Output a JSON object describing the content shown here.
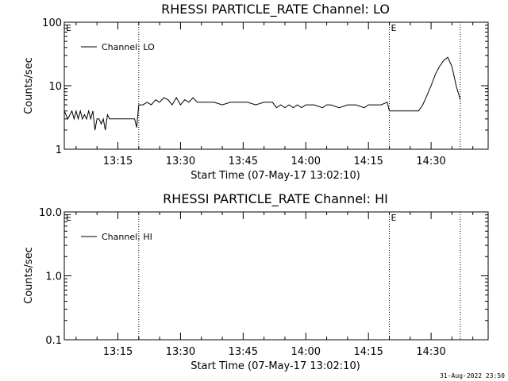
{
  "footer_date": "31-Aug-2022 23:50",
  "chart_data": [
    {
      "type": "line",
      "title": "RHESSI PARTICLE_RATE Channel: LO",
      "xlabel": "Start Time (07-May-17 13:02:10)",
      "ylabel": "Counts/sec",
      "yscale": "log",
      "ylim": [
        1,
        100
      ],
      "yticks": [
        1,
        10,
        100
      ],
      "ytick_labels": [
        "1",
        "10",
        "100"
      ],
      "xlim": [
        "13:02:10",
        "14:43:40"
      ],
      "xticks": [
        "13:15",
        "13:30",
        "13:45",
        "14:00",
        "14:15",
        "14:30"
      ],
      "markers": [
        {
          "time": "13:20:00",
          "label": ""
        },
        {
          "time": "14:20:00",
          "label": "E"
        },
        {
          "time": "14:37:00",
          "label": ""
        }
      ],
      "corner_label": "E",
      "legend_position": "top-left",
      "series": [
        {
          "name": "Channel: LO",
          "x": [
            "13:02:10",
            "13:03:00",
            "13:04:00",
            "13:04:30",
            "13:05:00",
            "13:05:30",
            "13:06:00",
            "13:06:30",
            "13:07:00",
            "13:07:30",
            "13:08:00",
            "13:08:30",
            "13:09:00",
            "13:09:30",
            "13:10:00",
            "13:10:30",
            "13:11:00",
            "13:11:30",
            "13:12:00",
            "13:12:30",
            "13:13:00",
            "13:14:00",
            "13:15:00",
            "13:16:00",
            "13:17:00",
            "13:18:00",
            "13:19:00",
            "13:19:30",
            "13:20:00",
            "13:21:00",
            "13:22:00",
            "13:23:00",
            "13:24:00",
            "13:25:00",
            "13:26:00",
            "13:27:00",
            "13:28:00",
            "13:29:00",
            "13:30:00",
            "13:31:00",
            "13:32:00",
            "13:33:00",
            "13:34:00",
            "13:36:00",
            "13:38:00",
            "13:40:00",
            "13:42:00",
            "13:44:00",
            "13:46:00",
            "13:48:00",
            "13:50:00",
            "13:52:00",
            "13:53:00",
            "13:54:00",
            "13:55:00",
            "13:56:00",
            "13:57:00",
            "13:58:00",
            "13:59:00",
            "14:00:00",
            "14:02:00",
            "14:04:00",
            "14:05:00",
            "14:06:00",
            "14:08:00",
            "14:10:00",
            "14:12:00",
            "14:14:00",
            "14:15:00",
            "14:16:00",
            "14:18:00",
            "14:19:30",
            "14:20:00",
            "14:21:00",
            "14:22:00",
            "14:23:00",
            "14:24:00",
            "14:25:00",
            "14:26:00",
            "14:27:00",
            "14:28:00",
            "14:29:00",
            "14:30:00",
            "14:31:00",
            "14:32:00",
            "14:33:00",
            "14:34:00",
            "14:35:00",
            "14:36:00",
            "14:37:00"
          ],
          "y": [
            4,
            3,
            4,
            3,
            4,
            3,
            4,
            3,
            3.5,
            3,
            4,
            3,
            4,
            2,
            3,
            3,
            2.5,
            3,
            2,
            3.5,
            3,
            3,
            3,
            3,
            3,
            3,
            3,
            2.2,
            5,
            5,
            5.5,
            5,
            6,
            5.5,
            6.5,
            6,
            5,
            6.5,
            5,
            6,
            5.5,
            6.5,
            5.5,
            5.5,
            5.5,
            5,
            5.5,
            5.5,
            5.5,
            5,
            5.5,
            5.5,
            4.5,
            5,
            4.5,
            5,
            4.5,
            5,
            4.5,
            5,
            5,
            4.5,
            5,
            5,
            4.5,
            5,
            5,
            4.5,
            5,
            5,
            5,
            5.5,
            4,
            4,
            4,
            4,
            4,
            4,
            4,
            4,
            5,
            7,
            10,
            15,
            20,
            25,
            28,
            20,
            10,
            6
          ]
        }
      ]
    },
    {
      "type": "line",
      "title": "RHESSI PARTICLE_RATE Channel: HI",
      "xlabel": "Start Time (07-May-17 13:02:10)",
      "ylabel": "Counts/sec",
      "yscale": "log",
      "ylim": [
        0.1,
        10
      ],
      "yticks": [
        0.1,
        1,
        10
      ],
      "ytick_labels": [
        "0.1",
        "1.0",
        "10.0"
      ],
      "xlim": [
        "13:02:10",
        "14:43:40"
      ],
      "xticks": [
        "13:15",
        "13:30",
        "13:45",
        "14:00",
        "14:15",
        "14:30"
      ],
      "markers": [
        {
          "time": "13:20:00",
          "label": ""
        },
        {
          "time": "14:20:00",
          "label": "E"
        },
        {
          "time": "14:37:00",
          "label": ""
        }
      ],
      "corner_label": "E",
      "legend_position": "top-left",
      "series": [
        {
          "name": "Channel: HI",
          "x": [],
          "y": []
        }
      ]
    }
  ]
}
